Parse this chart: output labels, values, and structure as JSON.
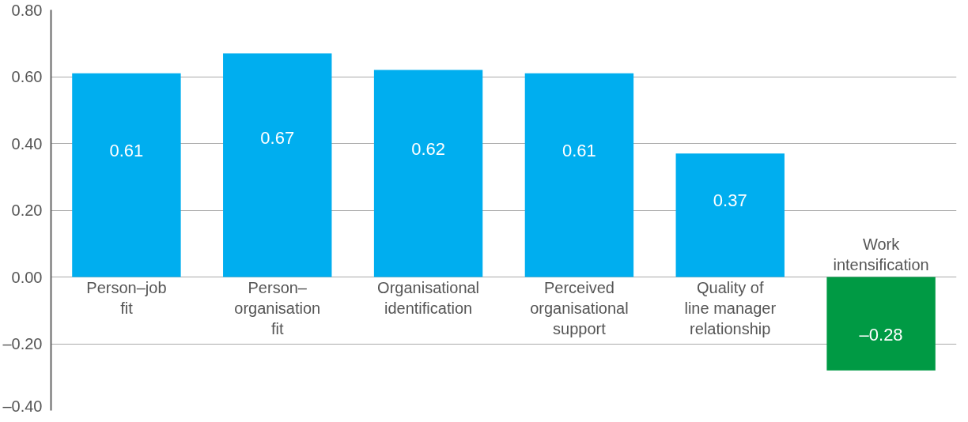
{
  "chart_data": {
    "type": "bar",
    "categories": [
      "Person–job\nfit",
      "Person–\norganisation\nfit",
      "Organisational\nidentification",
      "Perceived\norganisational\nsupport",
      "Quality of\nline manager\nrelationship",
      "Work\nintensification"
    ],
    "values": [
      0.61,
      0.67,
      0.62,
      0.61,
      0.37,
      -0.28
    ],
    "colors": [
      "#00aeef",
      "#00aeef",
      "#00aeef",
      "#00aeef",
      "#00aeef",
      "#009a44"
    ],
    "ylim": [
      -0.4,
      0.8
    ],
    "yticks": [
      {
        "value": -0.4,
        "label": "–0.40"
      },
      {
        "value": -0.2,
        "label": "–0.20"
      },
      {
        "value": 0,
        "label": "0.00"
      },
      {
        "value": 0.2,
        "label": "0.20"
      },
      {
        "value": 0.4,
        "label": "0.40"
      },
      {
        "value": 0.6,
        "label": "0.60"
      },
      {
        "value": 0.8,
        "label": "0.80"
      }
    ],
    "value_labels": [
      "0.61",
      "0.67",
      "0.62",
      "0.61",
      "0.37",
      "–0.28"
    ],
    "grid": "y"
  }
}
